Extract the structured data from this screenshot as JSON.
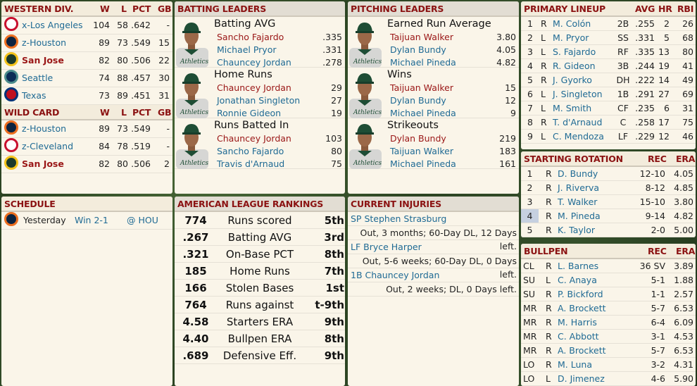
{
  "colors": {
    "header_text": "#8b1212",
    "link": "#1f6a94",
    "team_highlight": "#9a1616",
    "background": "#2f4a26"
  },
  "standings": {
    "division_header": {
      "title": "WESTERN DIV.",
      "w": "W",
      "l": "L",
      "pct": "PCT",
      "gb": "GB"
    },
    "division": [
      {
        "logo": "angels-logo",
        "team": "x-Los Angeles",
        "w": "104",
        "l": "58",
        "pct": ".642",
        "gb": "-",
        "highlight": false
      },
      {
        "logo": "astros-logo",
        "team": "z-Houston",
        "w": "89",
        "l": "73",
        "pct": ".549",
        "gb": "15",
        "highlight": false
      },
      {
        "logo": "athletics-logo",
        "team": "San Jose",
        "w": "82",
        "l": "80",
        "pct": ".506",
        "gb": "22",
        "highlight": true
      },
      {
        "logo": "mariners-logo",
        "team": "Seattle",
        "w": "74",
        "l": "88",
        "pct": ".457",
        "gb": "30",
        "highlight": false
      },
      {
        "logo": "rangers-logo",
        "team": "Texas",
        "w": "73",
        "l": "89",
        "pct": ".451",
        "gb": "31",
        "highlight": false
      }
    ],
    "wildcard_header": {
      "title": "WILD CARD",
      "w": "W",
      "l": "L",
      "pct": "PCT",
      "gb": "GB"
    },
    "wildcard": [
      {
        "logo": "astros-logo",
        "team": "z-Houston",
        "w": "89",
        "l": "73",
        "pct": ".549",
        "gb": "-",
        "highlight": false
      },
      {
        "logo": "indians-logo",
        "team": "z-Cleveland",
        "w": "84",
        "l": "78",
        "pct": ".519",
        "gb": "-",
        "highlight": false
      },
      {
        "logo": "athletics-logo",
        "team": "San Jose",
        "w": "82",
        "l": "80",
        "pct": ".506",
        "gb": "2",
        "highlight": true
      }
    ]
  },
  "schedule": {
    "title": "SCHEDULE",
    "games": [
      {
        "logo": "astros-logo",
        "when": "Yesterday",
        "result": "Win 2-1",
        "opponent": "@ HOU"
      }
    ]
  },
  "batting_leaders": {
    "title": "BATTING LEADERS",
    "categories": [
      {
        "name": "Batting AVG",
        "leaders": [
          {
            "player": "Sancho Fajardo",
            "value": ".335"
          },
          {
            "player": "Michael Pryor",
            "value": ".331"
          },
          {
            "player": "Chauncey Jordan",
            "value": ".278"
          }
        ]
      },
      {
        "name": "Home Runs",
        "leaders": [
          {
            "player": "Chauncey Jordan",
            "value": "29"
          },
          {
            "player": "Jonathan Singleton",
            "value": "27"
          },
          {
            "player": "Ronnie Gideon",
            "value": "19"
          }
        ]
      },
      {
        "name": "Runs Batted In",
        "leaders": [
          {
            "player": "Chauncey Jordan",
            "value": "103"
          },
          {
            "player": "Sancho Fajardo",
            "value": "80"
          },
          {
            "player": "Travis d'Arnaud",
            "value": "75"
          }
        ]
      }
    ]
  },
  "pitching_leaders": {
    "title": "PITCHING LEADERS",
    "categories": [
      {
        "name": "Earned Run Average",
        "leaders": [
          {
            "player": "Taijuan Walker",
            "value": "3.80"
          },
          {
            "player": "Dylan Bundy",
            "value": "4.05"
          },
          {
            "player": "Michael Pineda",
            "value": "4.82"
          }
        ]
      },
      {
        "name": "Wins",
        "leaders": [
          {
            "player": "Taijuan Walker",
            "value": "15"
          },
          {
            "player": "Dylan Bundy",
            "value": "12"
          },
          {
            "player": "Michael Pineda",
            "value": "9"
          }
        ]
      },
      {
        "name": "Strikeouts",
        "leaders": [
          {
            "player": "Dylan Bundy",
            "value": "219"
          },
          {
            "player": "Taijuan Walker",
            "value": "183"
          },
          {
            "player": "Michael Pineda",
            "value": "161"
          }
        ]
      }
    ]
  },
  "rankings": {
    "title": "AMERICAN LEAGUE RANKINGS",
    "rows": [
      {
        "value": "774",
        "stat": "Runs scored",
        "rank": "5th"
      },
      {
        "value": ".267",
        "stat": "Batting AVG",
        "rank": "3rd"
      },
      {
        "value": ".321",
        "stat": "On-Base PCT",
        "rank": "8th"
      },
      {
        "value": "185",
        "stat": "Home Runs",
        "rank": "7th"
      },
      {
        "value": "166",
        "stat": "Stolen Bases",
        "rank": "1st"
      },
      {
        "value": "764",
        "stat": "Runs against",
        "rank": "t-9th"
      },
      {
        "value": "4.58",
        "stat": "Starters ERA",
        "rank": "9th"
      },
      {
        "value": "4.40",
        "stat": "Bullpen ERA",
        "rank": "8th"
      },
      {
        "value": ".689",
        "stat": "Defensive Eff.",
        "rank": "9th"
      }
    ]
  },
  "injuries": {
    "title": "CURRENT INJURIES",
    "items": [
      {
        "player": "SP Stephen Strasburg",
        "detail": "Out, 3 months; 60-Day DL, 12 Days left."
      },
      {
        "player": "LF Bryce Harper",
        "detail": "Out, 5-6 weeks; 60-Day DL, 0 Days left."
      },
      {
        "player": "1B Chauncey Jordan",
        "detail": "Out, 2 weeks; DL, 0 Days left."
      }
    ]
  },
  "lineup": {
    "title": "PRIMARY LINEUP",
    "cols": {
      "avg": "AVG",
      "hr": "HR",
      "rbi": "RBI"
    },
    "rows": [
      {
        "n": "1",
        "b": "R",
        "player": "M. Colón",
        "pos": "2B",
        "avg": ".255",
        "hr": "2",
        "rbi": "26"
      },
      {
        "n": "2",
        "b": "L",
        "player": "M. Pryor",
        "pos": "SS",
        "avg": ".331",
        "hr": "5",
        "rbi": "68"
      },
      {
        "n": "3",
        "b": "L",
        "player": "S. Fajardo",
        "pos": "RF",
        "avg": ".335",
        "hr": "13",
        "rbi": "80"
      },
      {
        "n": "4",
        "b": "R",
        "player": "R. Gideon",
        "pos": "3B",
        "avg": ".244",
        "hr": "19",
        "rbi": "41"
      },
      {
        "n": "5",
        "b": "R",
        "player": "J. Gyorko",
        "pos": "DH",
        "avg": ".222",
        "hr": "14",
        "rbi": "49"
      },
      {
        "n": "6",
        "b": "L",
        "player": "J. Singleton",
        "pos": "1B",
        "avg": ".291",
        "hr": "27",
        "rbi": "69"
      },
      {
        "n": "7",
        "b": "L",
        "player": "M. Smith",
        "pos": "CF",
        "avg": ".235",
        "hr": "6",
        "rbi": "31"
      },
      {
        "n": "8",
        "b": "R",
        "player": "T. d'Arnaud",
        "pos": "C",
        "avg": ".258",
        "hr": "17",
        "rbi": "75"
      },
      {
        "n": "9",
        "b": "L",
        "player": "C. Mendoza",
        "pos": "LF",
        "avg": ".229",
        "hr": "12",
        "rbi": "46"
      }
    ]
  },
  "rotation": {
    "title": "STARTING ROTATION",
    "cols": {
      "rec": "REC",
      "era": "ERA"
    },
    "rows": [
      {
        "n": "1",
        "t": "R",
        "player": "D. Bundy",
        "rec": "12-10",
        "era": "4.05",
        "selected": false
      },
      {
        "n": "2",
        "t": "R",
        "player": "J. Riverva",
        "rec": "8-12",
        "era": "4.85",
        "selected": false
      },
      {
        "n": "3",
        "t": "R",
        "player": "T. Walker",
        "rec": "15-10",
        "era": "3.80",
        "selected": false
      },
      {
        "n": "4",
        "t": "R",
        "player": "M. Pineda",
        "rec": "9-14",
        "era": "4.82",
        "selected": true
      },
      {
        "n": "5",
        "t": "R",
        "player": "K. Taylor",
        "rec": "2-0",
        "era": "5.00",
        "selected": false
      }
    ]
  },
  "bullpen": {
    "title": "BULLPEN",
    "cols": {
      "rec": "REC",
      "era": "ERA"
    },
    "rows": [
      {
        "n": "CL",
        "t": "R",
        "player": "L. Barnes",
        "rec": "36 SV",
        "era": "3.89"
      },
      {
        "n": "SU",
        "t": "L",
        "player": "C. Anaya",
        "rec": "5-1",
        "era": "1.88"
      },
      {
        "n": "SU",
        "t": "R",
        "player": "P. Bickford",
        "rec": "1-1",
        "era": "2.57"
      },
      {
        "n": "MR",
        "t": "R",
        "player": "A. Brockett",
        "rec": "5-7",
        "era": "6.53"
      },
      {
        "n": "MR",
        "t": "R",
        "player": "M. Harris",
        "rec": "6-4",
        "era": "6.09"
      },
      {
        "n": "MR",
        "t": "R",
        "player": "C. Abbott",
        "rec": "3-1",
        "era": "4.53"
      },
      {
        "n": "MR",
        "t": "R",
        "player": "A. Brockett",
        "rec": "5-7",
        "era": "6.53"
      },
      {
        "n": "LO",
        "t": "R",
        "player": "M. Luna",
        "rec": "3-2",
        "era": "4.31"
      },
      {
        "n": "LO",
        "t": "L",
        "player": "D. Jimenez",
        "rec": "4-6",
        "era": "5.90"
      }
    ]
  }
}
